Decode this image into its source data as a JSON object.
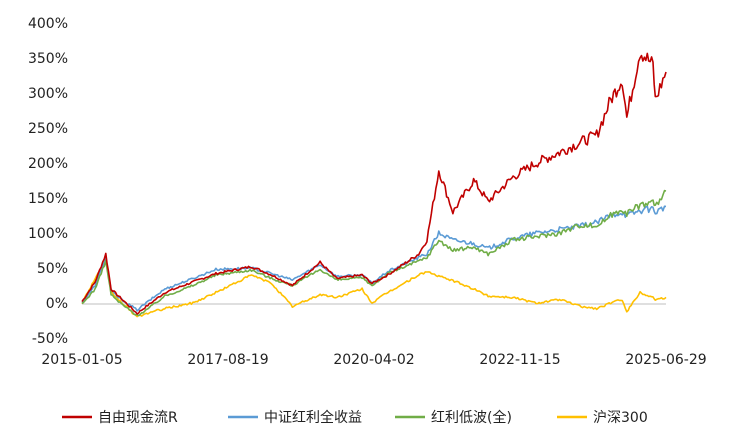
{
  "chart_data": {
    "type": "line",
    "title": "",
    "xlabel": "",
    "ylabel": "",
    "x_ticks": [
      "2015-01-05",
      "2017-08-19",
      "2020-04-02",
      "2022-11-15",
      "2025-06-29"
    ],
    "y_ticks": [
      "-50%",
      "0%",
      "50%",
      "100%",
      "150%",
      "200%",
      "250%",
      "300%",
      "350%",
      "400%"
    ],
    "ylim": [
      -50,
      400
    ],
    "y_unit": "%",
    "xlim": [
      "2015-01-05",
      "2025-06-29"
    ],
    "grid": false,
    "legend_position": "bottom",
    "x": [
      "2015-01-05",
      "2015-04-01",
      "2015-06-10",
      "2015-07-15",
      "2015-09-01",
      "2016-01-01",
      "2016-03-01",
      "2016-07-01",
      "2017-01-01",
      "2017-06-01",
      "2018-01-20",
      "2018-06-01",
      "2018-10-15",
      "2019-04-15",
      "2019-08-01",
      "2020-01-15",
      "2020-03-20",
      "2020-07-01",
      "2021-01-20",
      "2021-03-15",
      "2021-06-01",
      "2021-09-01",
      "2022-01-15",
      "2022-04-20",
      "2022-10-01",
      "2023-03-01",
      "2023-08-01",
      "2023-12-20",
      "2024-04-01",
      "2024-07-01",
      "2024-09-15",
      "2024-10-15",
      "2025-01-10",
      "2025-04-05",
      "2025-04-20",
      "2025-06-29"
    ],
    "series": [
      {
        "name": "自由现金流R",
        "color": "#C00000",
        "values": [
          2,
          30,
          70,
          20,
          10,
          -15,
          -5,
          15,
          30,
          42,
          52,
          40,
          25,
          58,
          35,
          40,
          28,
          40,
          70,
          90,
          190,
          130,
          175,
          145,
          180,
          200,
          215,
          230,
          240,
          290,
          320,
          265,
          360,
          340,
          290,
          330
        ]
      },
      {
        "name": "中证红利全收益",
        "color": "#5B9BD5",
        "values": [
          0,
          25,
          65,
          18,
          8,
          -10,
          0,
          20,
          35,
          48,
          50,
          42,
          33,
          55,
          38,
          40,
          28,
          45,
          65,
          70,
          100,
          90,
          85,
          78,
          92,
          100,
          105,
          110,
          115,
          125,
          130,
          125,
          132,
          135,
          130,
          138
        ]
      },
      {
        "name": "红利低波(全)",
        "color": "#70AD47",
        "values": [
          -2,
          20,
          60,
          12,
          2,
          -18,
          -10,
          10,
          25,
          40,
          47,
          35,
          25,
          48,
          33,
          36,
          25,
          42,
          60,
          65,
          90,
          75,
          80,
          70,
          90,
          95,
          100,
          112,
          110,
          125,
          135,
          128,
          140,
          145,
          138,
          160
        ]
      },
      {
        "name": "沪深300",
        "color": "#FFC000",
        "values": [
          0,
          35,
          60,
          15,
          5,
          -20,
          -15,
          -8,
          0,
          15,
          40,
          28,
          -5,
          12,
          8,
          20,
          0,
          15,
          40,
          45,
          38,
          32,
          20,
          10,
          8,
          0,
          5,
          -5,
          -8,
          0,
          5,
          -12,
          15,
          8,
          5,
          8
        ]
      }
    ]
  }
}
